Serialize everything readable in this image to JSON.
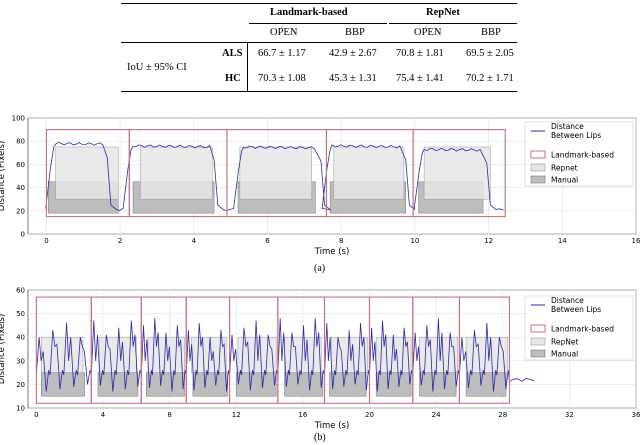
{
  "table": {
    "group_headers": [
      "Landmark-based",
      "RepNet"
    ],
    "sub_headers": [
      "OPEN",
      "BBP",
      "OPEN",
      "BBP"
    ],
    "row_label": "IoU ± 95% CI",
    "rows": [
      {
        "name": "ALS",
        "values": [
          "66.7 ± 1.17",
          "42.9 ± 2.67",
          "70.8 ± 1.81",
          "69.5 ± 2.05"
        ]
      },
      {
        "name": "HC",
        "values": [
          "70.3 ± 1.08",
          "45.3 ± 1.31",
          "75.4 ± 1.41",
          "70.2 ± 1.71"
        ]
      }
    ]
  },
  "colors": {
    "signal": "#2a2aa8",
    "landmark": "#c8707a",
    "repnet_fill": "#e6e6e6",
    "manual_fill": "#bdbdbd"
  },
  "chart_data": [
    {
      "type": "line",
      "caption": "(a)",
      "xlabel": "Time (s)",
      "ylabel": "Distance (Pixels)",
      "xlim": [
        -0.5,
        16
      ],
      "ylim": [
        0,
        100
      ],
      "xticks": [
        0,
        2,
        4,
        6,
        8,
        10,
        12,
        14,
        16
      ],
      "yticks": [
        0,
        20,
        40,
        60,
        80,
        100
      ],
      "grid": true,
      "legend": {
        "position": "right",
        "entries": [
          "Distance Between Lips",
          "Landmark-based",
          "Repnet",
          "Manual"
        ]
      },
      "signal": {
        "name": "Distance Between Lips",
        "baseline": 21,
        "end": 12.4,
        "plateaus": [
          [
            0.2,
            1.55,
            78
          ],
          [
            2.3,
            4.45,
            76
          ],
          [
            5.3,
            7.35,
            75
          ],
          [
            7.7,
            9.65,
            76
          ],
          [
            10.2,
            11.85,
            73
          ]
        ]
      },
      "landmark_regions": [
        [
          0,
          2.25,
          15,
          90
        ],
        [
          2.25,
          4.9,
          15,
          90
        ],
        [
          4.9,
          7.6,
          15,
          90
        ],
        [
          7.6,
          9.95,
          15,
          90
        ],
        [
          9.95,
          12.45,
          15,
          90
        ]
      ],
      "repnet_regions": [
        [
          0.25,
          1.95,
          30,
          75
        ],
        [
          2.55,
          4.5,
          30,
          75
        ],
        [
          5.25,
          7.2,
          30,
          75
        ],
        [
          7.8,
          9.7,
          30,
          75
        ],
        [
          10.25,
          12.05,
          30,
          75
        ]
      ],
      "manual_regions": [
        [
          0.05,
          1.95,
          18,
          45
        ],
        [
          2.35,
          4.55,
          18,
          45
        ],
        [
          5.2,
          7.3,
          18,
          45
        ],
        [
          7.7,
          9.75,
          18,
          45
        ],
        [
          10.1,
          11.85,
          18,
          45
        ]
      ]
    },
    {
      "type": "line",
      "caption": "(b)",
      "xlabel": "Time (s)",
      "ylabel": "Distance (Pixels)",
      "xlim": [
        -0.5,
        36
      ],
      "ylim": [
        10,
        60
      ],
      "xticks": [
        0,
        4,
        8,
        12,
        16,
        20,
        24,
        28,
        32,
        36
      ],
      "yticks": [
        10,
        20,
        30,
        40,
        50,
        60
      ],
      "grid": true,
      "legend": {
        "position": "right",
        "entries": [
          "Distance Between Lips",
          "Landmark-based",
          "RepNet",
          "Manual"
        ]
      },
      "signal": {
        "name": "Distance Between Lips",
        "baseline": 22,
        "end": 30,
        "cycles": [
          [
            0,
            3.3
          ],
          [
            3.3,
            6.3
          ],
          [
            6.3,
            9.0
          ],
          [
            9.0,
            11.6
          ],
          [
            11.6,
            14.5
          ],
          [
            14.5,
            17.3
          ],
          [
            17.3,
            20.0
          ],
          [
            20.0,
            22.6
          ],
          [
            22.6,
            25.4
          ],
          [
            25.4,
            28.4
          ]
        ],
        "peak_range": [
          40,
          48
        ],
        "trough_range": [
          17,
          20
        ]
      },
      "landmark_regions": [
        [
          0,
          3.3,
          12,
          57
        ],
        [
          3.3,
          6.3,
          12,
          57
        ],
        [
          6.3,
          9.0,
          12,
          57
        ],
        [
          9.0,
          11.6,
          12,
          57
        ],
        [
          11.6,
          14.5,
          12,
          57
        ],
        [
          14.5,
          17.3,
          12,
          57
        ],
        [
          17.3,
          20.0,
          12,
          57
        ],
        [
          20.0,
          22.6,
          12,
          57
        ],
        [
          22.6,
          25.4,
          12,
          57
        ],
        [
          25.4,
          28.4,
          12,
          57
        ]
      ],
      "repnet_regions": [
        [
          0.3,
          2.8,
          25,
          40
        ],
        [
          3.8,
          6.0,
          25,
          40
        ],
        [
          6.7,
          8.9,
          25,
          40
        ],
        [
          9.3,
          11.4,
          25,
          40
        ],
        [
          12.1,
          14.4,
          25,
          40
        ],
        [
          14.9,
          17.1,
          25,
          40
        ],
        [
          17.7,
          19.9,
          25,
          40
        ],
        [
          20.4,
          22.5,
          25,
          40
        ],
        [
          23.0,
          25.3,
          25,
          40
        ],
        [
          25.8,
          28.3,
          25,
          40
        ]
      ],
      "manual_regions": [
        [
          0.3,
          2.9,
          15,
          25
        ],
        [
          3.7,
          6.1,
          15,
          25
        ],
        [
          6.6,
          8.9,
          15,
          25
        ],
        [
          9.4,
          11.5,
          15,
          25
        ],
        [
          12.0,
          14.4,
          15,
          25
        ],
        [
          14.9,
          17.2,
          15,
          25
        ],
        [
          17.6,
          19.8,
          15,
          25
        ],
        [
          20.4,
          22.5,
          15,
          25
        ],
        [
          23.0,
          25.2,
          15,
          25
        ],
        [
          25.8,
          28.2,
          15,
          25
        ]
      ]
    }
  ]
}
